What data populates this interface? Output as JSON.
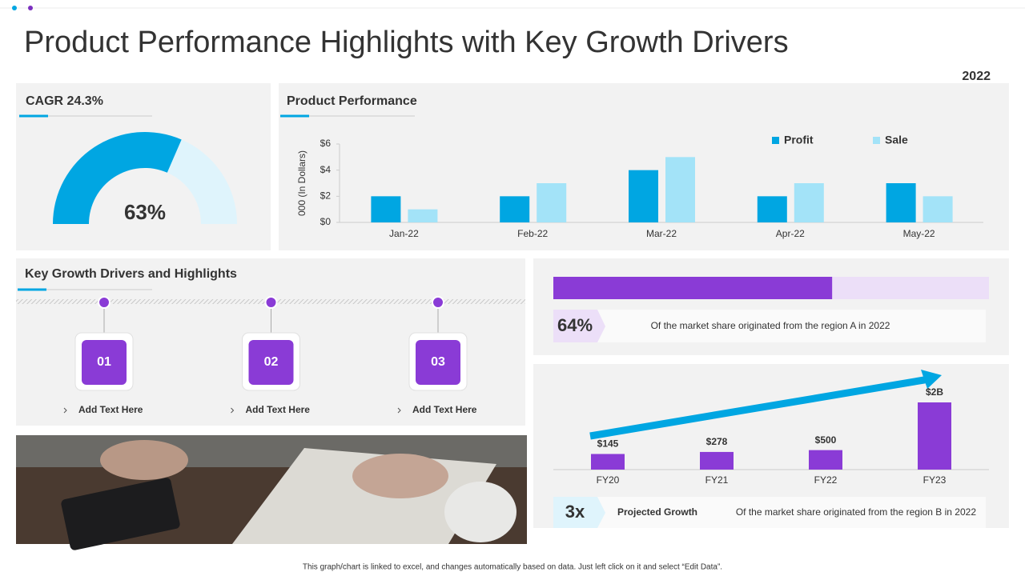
{
  "title": "Product Performance Highlights with Key Growth Drivers",
  "year": "2022",
  "footer": "This graph/chart is linked to excel, and changes automatically based on data. Just left click on it and select “Edit Data”.",
  "drivers": {
    "title": "Key Growth Drivers and Highlights",
    "items": [
      {
        "number": "01",
        "label": "Add  Text Here"
      },
      {
        "number": "02",
        "label": "Add  Text Here"
      },
      {
        "number": "03",
        "label": "Add  Text Here"
      }
    ]
  },
  "chart_data": [
    {
      "type": "gauge",
      "title": "CAGR 24.3%",
      "values": [
        63
      ],
      "value_labels": [
        "63%"
      ],
      "ylim": [
        0,
        100
      ],
      "color": "#00a6e2",
      "track_color": "#dff4fc"
    },
    {
      "type": "bar",
      "title": "Product Performance",
      "y_label": "000 (In Dollars)",
      "categories": [
        "Jan-22",
        "Feb-22",
        "Mar-22",
        "Apr-22",
        "May-22"
      ],
      "series": [
        {
          "name": "Profit",
          "color": "#00a6e2",
          "values": [
            2,
            2,
            4,
            2,
            3
          ]
        },
        {
          "name": "Sale",
          "color": "#a3e3f8",
          "values": [
            1,
            3,
            5,
            3,
            2
          ]
        }
      ],
      "ylim": [
        0,
        6
      ],
      "yticks": [
        {
          "value": 0,
          "label": "$0"
        },
        {
          "value": 2,
          "label": "$2"
        },
        {
          "value": 4,
          "label": "$4"
        },
        {
          "value": 6,
          "label": "$6"
        }
      ]
    },
    {
      "type": "progress",
      "values": [
        64
      ],
      "value_labels": [
        "64%"
      ],
      "ylim": [
        0,
        100
      ],
      "color": "#8a3bd6",
      "track_color": "#ecdff8",
      "text": "Of the market share originated from the region A in 2022"
    },
    {
      "type": "bar",
      "categories": [
        "FY20",
        "FY21",
        "FY22",
        "FY23"
      ],
      "values": [
        145,
        278,
        500,
        2000000000
      ],
      "value_labels": [
        "$145",
        "$278",
        "$500",
        "$2B"
      ],
      "log_scale": true,
      "ylim": [
        1,
        2000000000
      ],
      "color": "#8a3bd6",
      "annotation": "3x",
      "annotation_title": "Projected Growth",
      "text": "Of the market share originated from the region B in 2022"
    }
  ]
}
